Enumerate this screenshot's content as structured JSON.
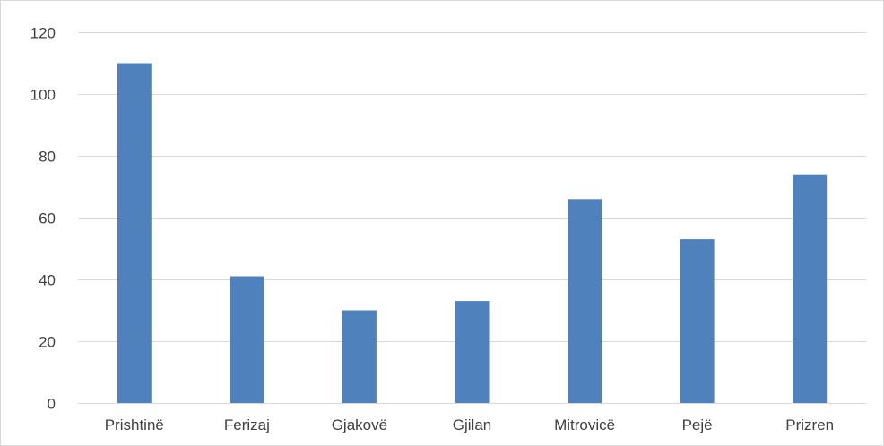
{
  "chart_data": {
    "type": "bar",
    "categories": [
      "Prishtinë",
      "Ferizaj",
      "Gjakovë",
      "Gjilan",
      "Mitrovicë",
      "Pejë",
      "Prizren"
    ],
    "values": [
      110,
      41,
      30,
      33,
      66,
      53,
      74
    ],
    "ylim": [
      0,
      120
    ],
    "yticks": [
      0,
      20,
      40,
      60,
      80,
      100,
      120
    ],
    "grid": true,
    "legend": "none",
    "colors": {
      "bar": "#4f81bd",
      "grid": "#d9d9d9",
      "text": "#404040"
    }
  }
}
